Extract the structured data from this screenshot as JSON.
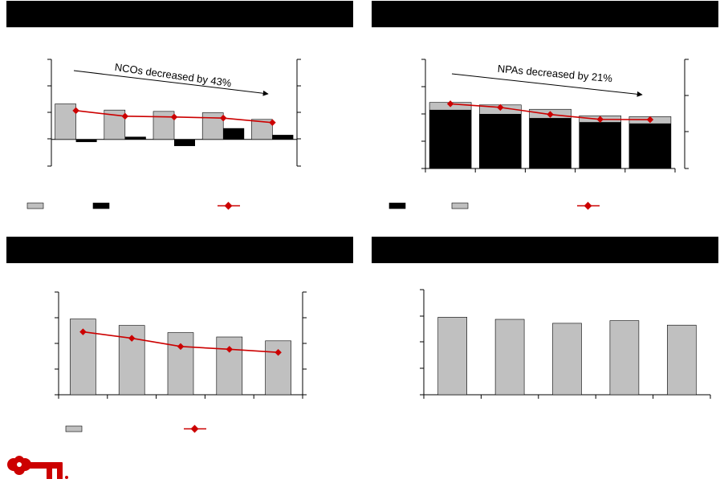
{
  "colors": {
    "header": "#000000",
    "bar_gray": "#c0c0c0",
    "bar_black": "#000000",
    "line_red": "#cc0000",
    "brand_red": "#cc0000"
  },
  "logo": {
    "icon": "key-icon"
  },
  "chart_data": [
    {
      "type": "bar+line",
      "annotation": "NCOs decreased by 43%",
      "ylim": [
        -1,
        3
      ],
      "bars_positive": [
        1.33,
        1.1,
        1.05,
        1.0,
        0.75
      ],
      "bars_change": [
        -0.1,
        0.1,
        -0.25,
        0.42,
        0.17
      ],
      "line": [
        1.08,
        0.87,
        0.84,
        0.8,
        0.63
      ]
    },
    {
      "type": "stacked-bar+line",
      "annotation": "NPAs decreased by 21%",
      "ylim": [
        0,
        4
      ],
      "bars_black": [
        2.15,
        2.0,
        1.85,
        1.7,
        1.65
      ],
      "bars_gray_total": [
        2.42,
        2.33,
        2.17,
        1.93,
        1.9
      ],
      "line": [
        2.37,
        2.24,
        1.98,
        1.8,
        1.79
      ]
    },
    {
      "type": "bar+line",
      "ylim": [
        0,
        4
      ],
      "bars": [
        2.95,
        2.7,
        2.42,
        2.25,
        2.1
      ],
      "line": [
        2.45,
        2.2,
        1.88,
        1.77,
        1.65
      ]
    },
    {
      "type": "bar",
      "ylim": [
        0,
        4
      ],
      "bars": [
        2.95,
        2.87,
        2.72,
        2.82,
        2.65
      ]
    }
  ]
}
